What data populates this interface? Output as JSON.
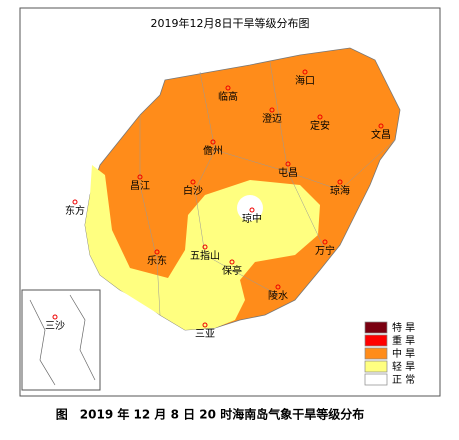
{
  "title": "2019年12月8日干旱等级分布图",
  "stations": [
    "海口",
    "临高",
    "澄迈",
    "定安",
    "文昌",
    "儋州",
    "屯昌",
    "昌江",
    "白沙",
    "琼海",
    "东方",
    "琼中",
    "万宁",
    "五指山",
    "乐东",
    "保亭",
    "陵水",
    "三沙",
    "三亚"
  ],
  "legend": [
    {
      "name": "特 旱",
      "color": "#7a0010"
    },
    {
      "name": "重 旱",
      "color": "#ff0000"
    },
    {
      "name": "中 旱",
      "color": "#ff8c1a"
    },
    {
      "name": "轻 旱",
      "color": "#ffff80"
    },
    {
      "name": "正 常",
      "color": "#ffffff"
    }
  ],
  "caption": "图　2019 年 12 月 8 日 20 时海南岛气象干旱等级分布"
}
